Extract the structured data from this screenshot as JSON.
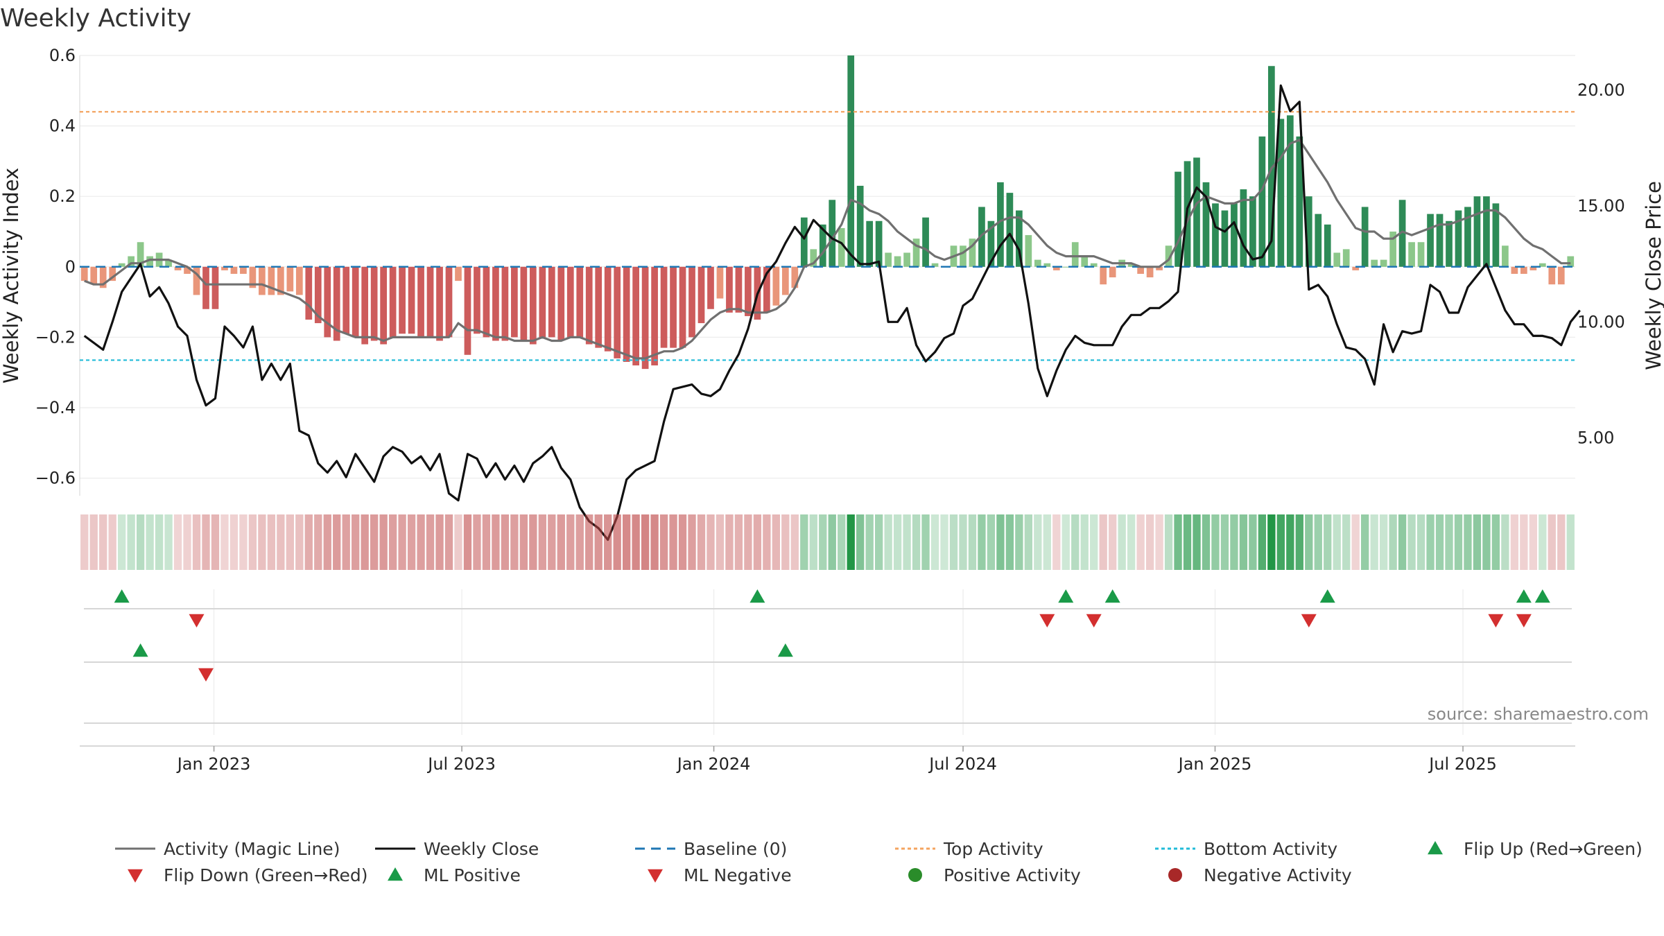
{
  "title": "Weekly Activity",
  "source": "source: sharemaestro.com",
  "colors": {
    "pos_dark": "#2e8b57",
    "pos_light": "#8cc78a",
    "neg_dark": "#cd5c5c",
    "neg_light": "#e9967a",
    "magic_line": "#707070",
    "close_line": "#111111",
    "top_activity": "#f4a460",
    "bottom_activity": "#22bbd8",
    "baseline": "#1f77b4",
    "flip_up": "#1a9a48",
    "flip_down": "#d32f2f"
  },
  "chart_data": {
    "type": "bar",
    "title": "Weekly Activity",
    "x_axis": {
      "tick_labels": [
        "Jan 2023",
        "Jul 2023",
        "Jan 2024",
        "Jul 2024",
        "Jan 2025",
        "Jul 2025"
      ],
      "tick_dates": [
        "2023-01-01",
        "2023-07-01",
        "2024-01-01",
        "2024-07-01",
        "2025-01-01",
        "2025-07-01"
      ],
      "range": [
        "2022-09-25",
        "2025-09-21"
      ]
    },
    "y_left": {
      "label": "Weekly Activity Index",
      "range": [
        -0.65,
        0.6
      ],
      "ticks": [
        0.6,
        0.4,
        0.2,
        0,
        -0.2,
        -0.4,
        -0.6
      ],
      "tick_labels": [
        "0.6",
        "0.4",
        "0.2",
        "0",
        "−0.2",
        "−0.4",
        "−0.6"
      ]
    },
    "y_right": {
      "label": "Weekly Close Price",
      "range": [
        2.5,
        21.5
      ],
      "ticks": [
        20,
        15,
        10,
        5
      ],
      "tick_labels": [
        "20.00",
        "15.00",
        "10.00",
        "5.00"
      ]
    },
    "top_activity": 0.44,
    "bottom_activity": -0.265,
    "baseline": 0,
    "activity": [
      -0.04,
      -0.05,
      -0.06,
      -0.04,
      0.01,
      0.03,
      0.07,
      0.03,
      0.04,
      0.02,
      -0.01,
      -0.02,
      -0.08,
      -0.12,
      -0.12,
      -0.01,
      -0.02,
      -0.02,
      -0.06,
      -0.08,
      -0.08,
      -0.08,
      -0.07,
      -0.08,
      -0.15,
      -0.16,
      -0.2,
      -0.21,
      -0.19,
      -0.2,
      -0.22,
      -0.21,
      -0.22,
      -0.2,
      -0.19,
      -0.19,
      -0.2,
      -0.2,
      -0.21,
      -0.2,
      -0.04,
      -0.25,
      -0.19,
      -0.2,
      -0.21,
      -0.21,
      -0.2,
      -0.21,
      -0.22,
      -0.2,
      -0.2,
      -0.21,
      -0.2,
      -0.2,
      -0.22,
      -0.23,
      -0.24,
      -0.26,
      -0.27,
      -0.28,
      -0.29,
      -0.28,
      -0.23,
      -0.23,
      -0.23,
      -0.2,
      -0.16,
      -0.12,
      -0.09,
      -0.13,
      -0.13,
      -0.14,
      -0.15,
      -0.13,
      -0.11,
      -0.08,
      -0.06,
      0.14,
      0.05,
      0.12,
      0.19,
      0.11,
      0.6,
      0.23,
      0.13,
      0.13,
      0.04,
      0.03,
      0.04,
      0.08,
      0.14,
      0.01,
      0.0,
      0.06,
      0.06,
      0.08,
      0.17,
      0.13,
      0.24,
      0.21,
      0.16,
      0.09,
      0.02,
      0.01,
      -0.01,
      0.0,
      0.07,
      0.03,
      0.01,
      -0.05,
      -0.03,
      0.02,
      0.01,
      -0.02,
      -0.03,
      -0.01,
      0.06,
      0.27,
      0.3,
      0.31,
      0.24,
      0.18,
      0.16,
      0.18,
      0.22,
      0.2,
      0.37,
      0.57,
      0.42,
      0.43,
      0.37,
      0.2,
      0.15,
      0.12,
      0.04,
      0.05,
      -0.01,
      0.17,
      0.02,
      0.02,
      0.1,
      0.19,
      0.07,
      0.07,
      0.15,
      0.15,
      0.13,
      0.16,
      0.17,
      0.2,
      0.2,
      0.18,
      0.06,
      -0.02,
      -0.02,
      -0.01,
      0.01,
      -0.05,
      -0.05,
      0.03
    ],
    "magic_line": [
      -0.04,
      -0.05,
      -0.05,
      -0.03,
      -0.01,
      0.01,
      0.01,
      0.02,
      0.02,
      0.02,
      0.01,
      0.0,
      -0.02,
      -0.05,
      -0.05,
      -0.05,
      -0.05,
      -0.05,
      -0.05,
      -0.05,
      -0.06,
      -0.07,
      -0.08,
      -0.09,
      -0.11,
      -0.14,
      -0.16,
      -0.18,
      -0.19,
      -0.2,
      -0.2,
      -0.2,
      -0.21,
      -0.2,
      -0.2,
      -0.2,
      -0.2,
      -0.2,
      -0.2,
      -0.2,
      -0.16,
      -0.18,
      -0.18,
      -0.19,
      -0.2,
      -0.2,
      -0.21,
      -0.21,
      -0.21,
      -0.2,
      -0.21,
      -0.21,
      -0.2,
      -0.2,
      -0.21,
      -0.22,
      -0.23,
      -0.24,
      -0.25,
      -0.26,
      -0.26,
      -0.25,
      -0.24,
      -0.24,
      -0.23,
      -0.21,
      -0.18,
      -0.15,
      -0.13,
      -0.12,
      -0.12,
      -0.13,
      -0.13,
      -0.13,
      -0.12,
      -0.1,
      -0.06,
      0.0,
      0.01,
      0.04,
      0.08,
      0.12,
      0.19,
      0.18,
      0.16,
      0.15,
      0.13,
      0.1,
      0.08,
      0.06,
      0.05,
      0.03,
      0.02,
      0.03,
      0.04,
      0.06,
      0.09,
      0.11,
      0.13,
      0.14,
      0.14,
      0.12,
      0.09,
      0.06,
      0.04,
      0.03,
      0.03,
      0.03,
      0.03,
      0.02,
      0.01,
      0.01,
      0.01,
      0.0,
      0.0,
      0.0,
      0.02,
      0.07,
      0.13,
      0.18,
      0.2,
      0.19,
      0.18,
      0.18,
      0.19,
      0.19,
      0.22,
      0.28,
      0.31,
      0.35,
      0.36,
      0.32,
      0.28,
      0.24,
      0.19,
      0.15,
      0.11,
      0.1,
      0.1,
      0.08,
      0.08,
      0.1,
      0.09,
      0.1,
      0.11,
      0.12,
      0.12,
      0.13,
      0.14,
      0.15,
      0.16,
      0.16,
      0.14,
      0.11,
      0.08,
      0.06,
      0.05,
      0.03,
      0.01,
      0.01
    ],
    "weekly_close": [
      9.4,
      9.1,
      8.8,
      10.0,
      11.3,
      11.9,
      12.5,
      11.1,
      11.5,
      10.8,
      9.8,
      9.4,
      7.5,
      6.4,
      6.7,
      9.8,
      9.4,
      8.9,
      9.8,
      7.5,
      8.2,
      7.5,
      8.2,
      5.3,
      5.1,
      3.9,
      3.5,
      4.0,
      3.3,
      4.3,
      3.7,
      3.1,
      4.2,
      4.6,
      4.4,
      3.9,
      4.2,
      3.6,
      4.3,
      2.6,
      2.3,
      4.3,
      4.1,
      3.3,
      3.9,
      3.2,
      3.8,
      3.1,
      3.9,
      4.2,
      4.6,
      3.7,
      3.2,
      2.0,
      1.4,
      1.1,
      0.6,
      1.6,
      3.2,
      3.6,
      3.8,
      4.0,
      5.7,
      7.1,
      7.2,
      7.3,
      6.9,
      6.8,
      7.1,
      7.9,
      8.6,
      9.7,
      11.2,
      12.1,
      12.6,
      13.4,
      14.1,
      13.6,
      14.4,
      14.0,
      13.6,
      13.4,
      12.9,
      12.5,
      12.5,
      12.6,
      10.0,
      10.0,
      10.6,
      9.0,
      8.3,
      8.7,
      9.3,
      9.5,
      10.7,
      11.0,
      11.8,
      12.6,
      13.3,
      13.8,
      13.1,
      10.8,
      8.0,
      6.8,
      7.9,
      8.8,
      9.4,
      9.1,
      9.0,
      9.0,
      9.0,
      9.8,
      10.3,
      10.3,
      10.6,
      10.6,
      10.9,
      11.3,
      14.9,
      15.8,
      15.4,
      14.1,
      13.9,
      14.3,
      13.3,
      12.7,
      12.8,
      13.5,
      20.2,
      19.1,
      19.5,
      11.4,
      11.6,
      11.1,
      9.9,
      8.9,
      8.8,
      8.4,
      7.3,
      9.9,
      8.7,
      9.6,
      9.5,
      9.6,
      11.6,
      11.3,
      10.4,
      10.4,
      11.5,
      12.0,
      12.5,
      11.5,
      10.5,
      9.9,
      9.9,
      9.4,
      9.4,
      9.3,
      9.0,
      10.0,
      10.5
    ],
    "flip_up_dates": [
      "2022-10-23",
      "2024-02-11",
      "2024-09-29",
      "2024-11-03",
      "2025-04-13",
      "2025-09-07",
      "2025-09-21"
    ],
    "flip_down_dates": [
      "2022-12-18",
      "2024-09-15",
      "2024-10-20",
      "2025-03-30",
      "2025-08-17",
      "2025-09-07"
    ],
    "ml_positive_dates": [
      "2022-11-06",
      "2024-03-03"
    ],
    "ml_negative_dates": [
      "2022-12-25"
    ],
    "legend": [
      {
        "label": "Activity (Magic Line)",
        "kind": "solid-line",
        "color": "#707070"
      },
      {
        "label": "Weekly Close",
        "kind": "solid-line",
        "color": "#111111"
      },
      {
        "label": "Baseline (0)",
        "kind": "dashed-line",
        "color": "#1f77b4"
      },
      {
        "label": "Top Activity",
        "kind": "dotted-line",
        "color": "#f4a460"
      },
      {
        "label": "Bottom Activity",
        "kind": "dotted-line",
        "color": "#22bbd8"
      },
      {
        "label": "Flip Up (Red→Green)",
        "kind": "triangle-up",
        "color": "#1a9a48"
      },
      {
        "label": "Flip Down (Green→Red)",
        "kind": "triangle-down",
        "color": "#d32f2f"
      },
      {
        "label": "ML Positive",
        "kind": "triangle-up",
        "color": "#1a9a48"
      },
      {
        "label": "ML Negative",
        "kind": "triangle-down",
        "color": "#d32f2f"
      },
      {
        "label": "Positive Activity",
        "kind": "circle",
        "color": "#2a8c2a"
      },
      {
        "label": "Negative Activity",
        "kind": "circle",
        "color": "#a82828"
      }
    ]
  }
}
